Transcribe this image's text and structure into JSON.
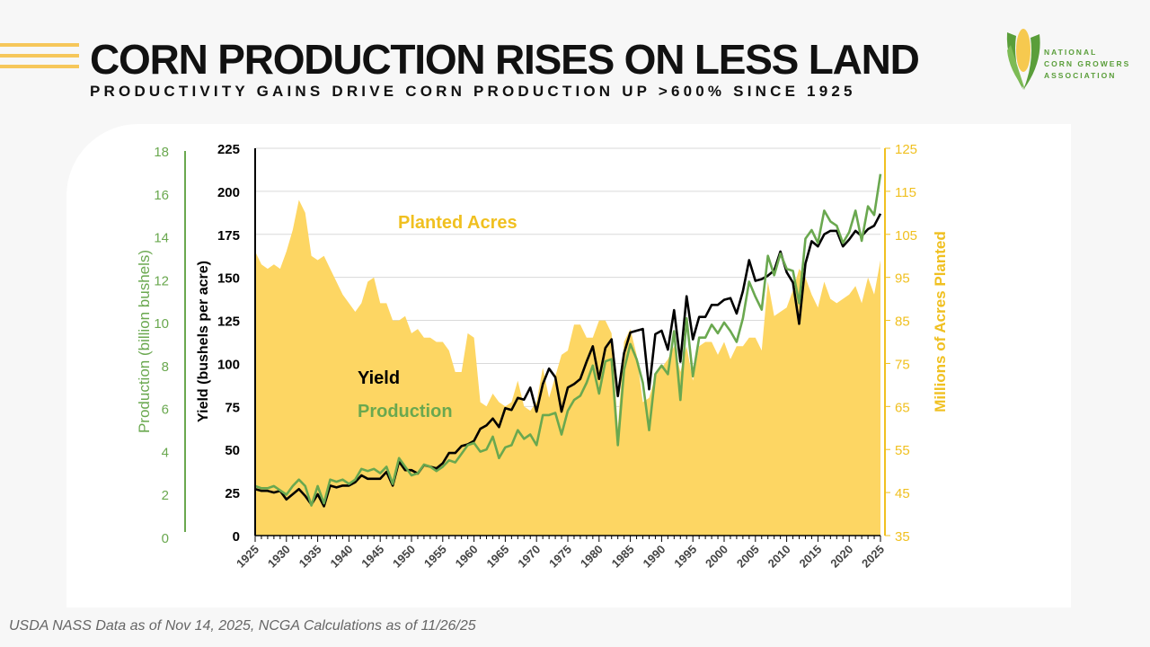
{
  "header": {
    "title": "CORN PRODUCTION RISES ON LESS LAND",
    "subtitle": "PRODUCTIVITY GAINS DRIVE CORN PRODUCTION UP >600% SINCE 1925"
  },
  "logo": {
    "icon": "corn-cob-icon",
    "lines": [
      "NATIONAL",
      "CORN GROWERS",
      "ASSOCIATION"
    ]
  },
  "footnote": "USDA NASS Data as of Nov 14, 2025, NCGA Calculations as of 11/26/25",
  "colors": {
    "acres": "#fdd663",
    "acres_axis": "#f0c020",
    "yield": "#000000",
    "production": "#6aa84f",
    "grid": "#d9d9d9"
  },
  "chart_data": {
    "type": "line",
    "title": "CORN PRODUCTION RISES ON LESS LAND",
    "annotations": [
      "Planted Acres",
      "Yield",
      "Production"
    ],
    "x_ticks": [
      "1925",
      "1930",
      "1935",
      "1940",
      "1945",
      "1950",
      "1955",
      "1960",
      "1965",
      "1970",
      "1975",
      "1980",
      "1985",
      "1990",
      "1995",
      "2000",
      "2005",
      "2010",
      "2015",
      "2020",
      "2025"
    ],
    "xlim": [
      1925,
      2025
    ],
    "axes": {
      "production": {
        "label": "Production  (billion bushels)",
        "ylim": [
          0,
          18
        ],
        "ticks": [
          "0",
          "2",
          "4",
          "6",
          "8",
          "10",
          "12",
          "14",
          "16",
          "18"
        ],
        "side": "far-left"
      },
      "yield": {
        "label": "Yield (bushels per acre)",
        "ylim": [
          0,
          225
        ],
        "ticks": [
          "0",
          "25",
          "50",
          "75",
          "100",
          "125",
          "150",
          "175",
          "200",
          "225"
        ],
        "side": "left"
      },
      "acres": {
        "label": "Millions of Acres Planted",
        "ylim": [
          35,
          125
        ],
        "ticks": [
          "35",
          "45",
          "55",
          "65",
          "75",
          "85",
          "95",
          "105",
          "115",
          "125"
        ],
        "side": "right"
      }
    },
    "grid": true,
    "x": [
      1925,
      1926,
      1927,
      1928,
      1929,
      1930,
      1931,
      1932,
      1933,
      1934,
      1935,
      1936,
      1937,
      1938,
      1939,
      1940,
      1941,
      1942,
      1943,
      1944,
      1945,
      1946,
      1947,
      1948,
      1949,
      1950,
      1951,
      1952,
      1953,
      1954,
      1955,
      1956,
      1957,
      1958,
      1959,
      1960,
      1961,
      1962,
      1963,
      1964,
      1965,
      1966,
      1967,
      1968,
      1969,
      1970,
      1971,
      1972,
      1973,
      1974,
      1975,
      1976,
      1977,
      1978,
      1979,
      1980,
      1981,
      1982,
      1983,
      1984,
      1985,
      1986,
      1987,
      1988,
      1989,
      1990,
      1991,
      1992,
      1993,
      1994,
      1995,
      1996,
      1997,
      1998,
      1999,
      2000,
      2001,
      2002,
      2003,
      2004,
      2005,
      2006,
      2007,
      2008,
      2009,
      2010,
      2011,
      2012,
      2013,
      2014,
      2015,
      2016,
      2017,
      2018,
      2019,
      2020,
      2021,
      2022,
      2023,
      2024,
      2025
    ],
    "series": [
      {
        "name": "Planted Acres",
        "axis": "acres",
        "type": "area",
        "values": [
          101,
          98,
          97,
          98,
          97,
          101,
          106,
          113,
          110,
          100,
          99,
          100,
          97,
          94,
          91,
          89,
          87,
          89,
          94,
          95,
          89,
          89,
          85,
          85,
          86,
          82,
          83,
          81,
          81,
          80,
          80,
          78,
          73,
          73,
          82,
          81,
          66,
          65,
          68,
          66,
          65,
          66,
          71,
          65,
          64,
          66,
          74,
          67,
          72,
          77,
          78,
          84,
          84,
          81,
          81,
          85,
          85,
          82,
          60,
          80,
          83,
          77,
          66,
          67,
          72,
          74,
          76,
          79,
          73,
          79,
          71,
          79,
          80,
          80,
          77,
          80,
          76,
          79,
          79,
          81,
          81,
          78,
          94,
          86,
          87,
          88,
          92,
          97,
          95,
          91,
          88,
          94,
          90,
          89,
          90,
          91,
          93,
          89,
          95,
          91,
          99
        ]
      },
      {
        "name": "Yield",
        "axis": "yield",
        "type": "line",
        "values": [
          27,
          26,
          26,
          25,
          26,
          21,
          24,
          27,
          23,
          18,
          24,
          17,
          29,
          28,
          29,
          29,
          31,
          35,
          33,
          33,
          33,
          37,
          29,
          43,
          38,
          38,
          36,
          41,
          40,
          39,
          42,
          48,
          48,
          52,
          53,
          55,
          62,
          64,
          68,
          63,
          74,
          73,
          80,
          79,
          86,
          72,
          88,
          97,
          92,
          72,
          86,
          88,
          91,
          101,
          110,
          91,
          109,
          114,
          81,
          106,
          118,
          119,
          120,
          85,
          117,
          119,
          108,
          131,
          101,
          139,
          114,
          127,
          127,
          134,
          134,
          137,
          138,
          129,
          142,
          160,
          148,
          149,
          151,
          154,
          165,
          153,
          147,
          123,
          158,
          171,
          168,
          175,
          177,
          177,
          168,
          172,
          177,
          174,
          178,
          180,
          187
        ]
      },
      {
        "name": "Production",
        "axis": "production",
        "type": "line",
        "values": [
          2.3,
          2.2,
          2.2,
          2.3,
          2.1,
          1.9,
          2.3,
          2.6,
          2.3,
          1.4,
          2.3,
          1.5,
          2.6,
          2.5,
          2.6,
          2.4,
          2.6,
          3.1,
          3.0,
          3.1,
          2.9,
          3.2,
          2.4,
          3.6,
          3.2,
          2.8,
          2.9,
          3.3,
          3.2,
          3.0,
          3.2,
          3.5,
          3.4,
          3.8,
          4.2,
          4.3,
          3.9,
          4.0,
          4.6,
          3.6,
          4.1,
          4.2,
          4.9,
          4.5,
          4.7,
          4.2,
          5.6,
          5.6,
          5.7,
          4.7,
          5.8,
          6.3,
          6.5,
          7.1,
          7.9,
          6.6,
          8.1,
          8.2,
          4.2,
          7.7,
          8.9,
          8.2,
          7.1,
          4.9,
          7.5,
          7.9,
          7.5,
          9.5,
          6.3,
          10.1,
          7.4,
          9.2,
          9.2,
          9.8,
          9.4,
          9.9,
          9.5,
          9.0,
          10.1,
          11.8,
          11.1,
          10.5,
          13.0,
          12.1,
          13.1,
          12.4,
          12.3,
          10.8,
          13.8,
          14.2,
          13.6,
          15.1,
          14.6,
          14.4,
          13.6,
          14.1,
          15.1,
          13.7,
          15.3,
          14.9,
          16.8
        ]
      }
    ]
  }
}
